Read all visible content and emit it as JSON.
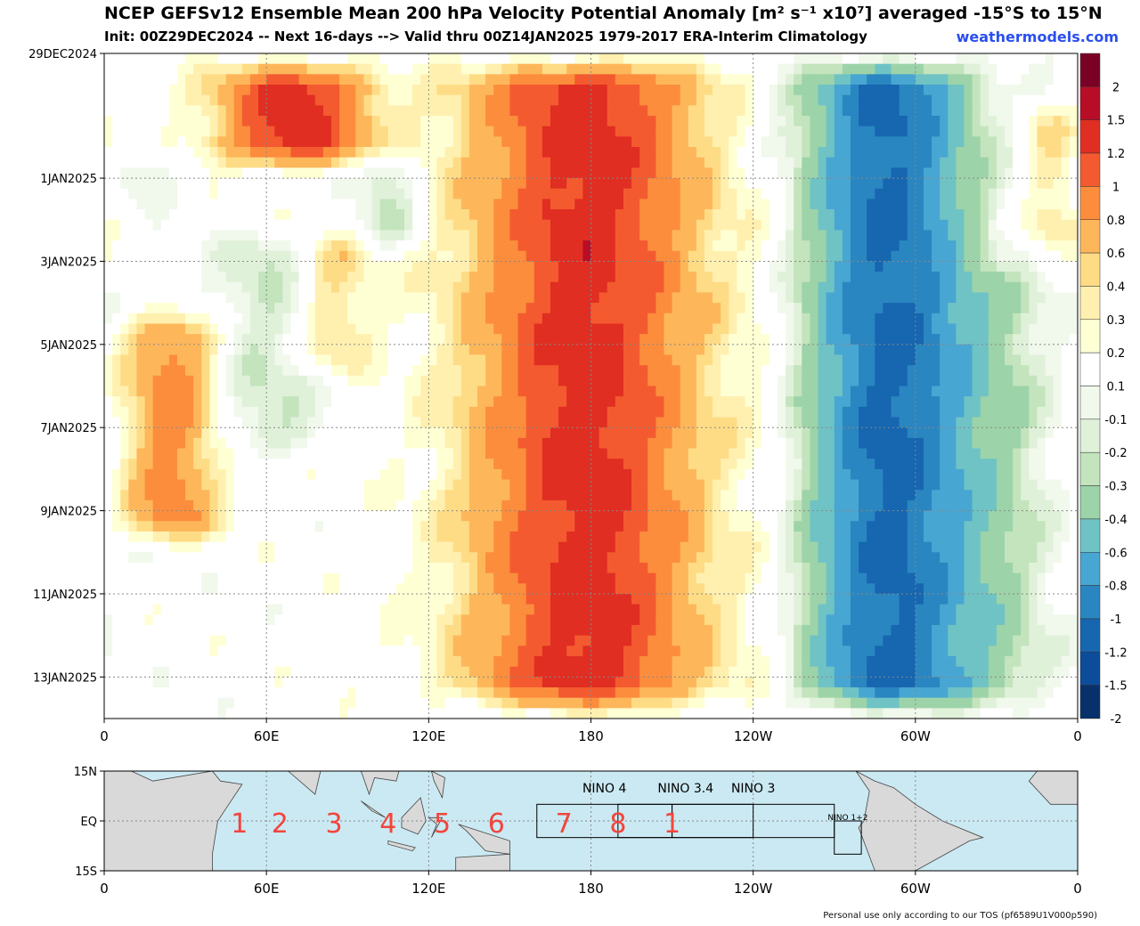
{
  "header": {
    "title": "NCEP GEFSv12 Ensemble Mean 200 hPa Velocity Potential Anomaly [m² s⁻¹ x10⁷] averaged -15°S to 15°N",
    "subtitle": "Init: 00Z29DEC2024 -- Next 16-days --> Valid thru 00Z14JAN2025 1979-2017 ERA-Interim Climatology",
    "brand": "weathermodels.com"
  },
  "footer": {
    "note": "Personal use only according to our TOS (pf6589U1V000p590)"
  },
  "colors": {
    "bands": [
      "#08306b",
      "#0b4d9a",
      "#1666b0",
      "#2a86c0",
      "#48a6d2",
      "#6fc3c5",
      "#9dd3a8",
      "#c3e4bd",
      "#e0f1d9",
      "#f1f8ec",
      "#ffffff",
      "#ffffd4",
      "#fff0b0",
      "#fedc86",
      "#fdb75a",
      "#fc8d3c",
      "#f45a2f",
      "#e02e22",
      "#b80d26",
      "#7a0026"
    ],
    "map_ocean": "#cbe9f2",
    "map_land": "#d9d9d9",
    "phase_numbers": "#f2453c"
  },
  "chart_data": {
    "type": "heatmap",
    "title": "NCEP GEFSv12 Ensemble Mean 200 hPa Velocity Potential Anomaly [m² s⁻¹ x10⁷] averaged -15°S to 15°N",
    "x_ticks": [
      "0",
      "60E",
      "120E",
      "180",
      "120W",
      "60W",
      "0"
    ],
    "x_tick_values": [
      0,
      60,
      120,
      180,
      240,
      300,
      360
    ],
    "y_ticks": [
      "29DEC2024",
      "1JAN2025",
      "3JAN2025",
      "5JAN2025",
      "7JAN2025",
      "9JAN2025",
      "11JAN2025",
      "13JAN2025"
    ],
    "y_tick_days": [
      0,
      3,
      5,
      7,
      9,
      11,
      13,
      15
    ],
    "y_range_days": [
      0,
      16
    ],
    "x_range_deg": [
      0,
      360
    ],
    "colorbar_labels": [
      "2",
      "1.5",
      "1.2",
      "1",
      "0.8",
      "0.6",
      "0.4",
      "0.3",
      "0.2",
      "0.1",
      "-0.1",
      "-0.2",
      "-0.3",
      "-0.4",
      "-0.6",
      "-0.8",
      "-1",
      "-1.2",
      "-1.5",
      "-2"
    ],
    "levels": [
      -2,
      -1.5,
      -1.2,
      -1,
      -0.8,
      -0.6,
      -0.4,
      -0.3,
      -0.2,
      -0.1,
      0.1,
      0.2,
      0.3,
      0.4,
      0.6,
      0.8,
      1,
      1.2,
      1.5,
      2
    ],
    "features": [
      {
        "lon": 178,
        "day_start": 0,
        "day_end": 16,
        "peak": 1.1,
        "halfwidth": 30
      },
      {
        "lon": 290,
        "day_start": 0,
        "day_end": 16,
        "peak": -1.25,
        "halfwidth": 22
      },
      {
        "lon": 70,
        "day_start": 0,
        "day_end": 3,
        "peak": 1.1,
        "halfwidth": 20
      },
      {
        "lon": 25,
        "day_start": 6,
        "day_end": 12,
        "peak": 0.7,
        "halfwidth": 12
      },
      {
        "lon": 85,
        "day_start": 4,
        "day_end": 8,
        "peak": 0.35,
        "halfwidth": 10
      },
      {
        "lon": 350,
        "day_start": 1,
        "day_end": 5,
        "peak": 0.3,
        "halfwidth": 8
      },
      {
        "lon": 105,
        "day_start": 2,
        "day_end": 5,
        "peak": -0.35,
        "halfwidth": 8
      },
      {
        "lon": 60,
        "day_start": 4,
        "day_end": 10,
        "peak": -0.3,
        "halfwidth": 14
      },
      {
        "lon": 15,
        "day_start": 2,
        "day_end": 4,
        "peak": -0.25,
        "halfwidth": 8
      },
      {
        "lon": 245,
        "day_start": 2,
        "day_end": 16,
        "peak": 0.1,
        "halfwidth": 10
      },
      {
        "lon": 330,
        "day_start": 5,
        "day_end": 16,
        "peak": -0.3,
        "halfwidth": 16
      }
    ]
  },
  "map": {
    "lat_ticks": [
      "15N",
      "EQ",
      "15S"
    ],
    "lon_ticks": [
      "0",
      "60E",
      "120E",
      "180",
      "120W",
      "60W",
      "0"
    ],
    "phase_numbers": [
      "1",
      "2",
      "3",
      "4",
      "5",
      "6",
      "7",
      "8",
      "1"
    ],
    "phase_lons": [
      50,
      65,
      85,
      105,
      125,
      145,
      170,
      190,
      210
    ],
    "regions": [
      {
        "label": "NINO 4",
        "lon_range": [
          160,
          210
        ],
        "lat_range": [
          -5,
          5
        ]
      },
      {
        "label": "NINO 3.4",
        "lon_range": [
          190,
          240
        ],
        "lat_range": [
          -5,
          5
        ]
      },
      {
        "label": "NINO 3",
        "lon_range": [
          210,
          270
        ],
        "lat_range": [
          -5,
          5
        ]
      },
      {
        "label": "NINO 1+2",
        "lon_range": [
          270,
          280
        ],
        "lat_range": [
          -10,
          0
        ]
      }
    ]
  }
}
